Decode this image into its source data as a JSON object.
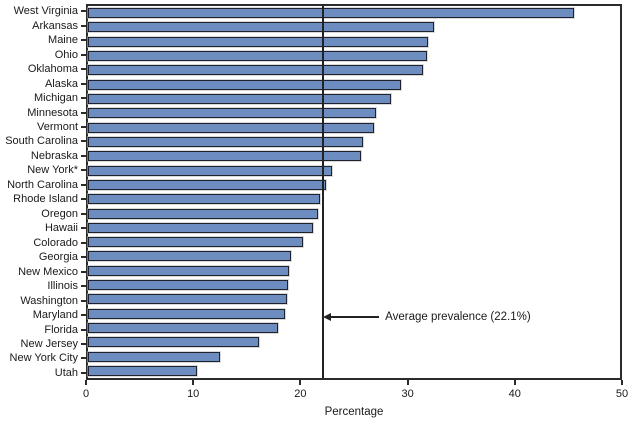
{
  "chart_data": {
    "type": "bar",
    "orientation": "horizontal",
    "title": "",
    "xlabel": "Percentage",
    "xlim": [
      0,
      50
    ],
    "xticks": [
      0,
      10,
      20,
      30,
      40,
      50
    ],
    "grid": false,
    "bar_color": "#6d8cc0",
    "bar_border_color": "#1e222c",
    "categories": [
      "West Virginia",
      "Arkansas",
      "Maine",
      "Ohio",
      "Oklahoma",
      "Alaska",
      "Michigan",
      "Minnesota",
      "Vermont",
      "South Carolina",
      "Nebraska",
      "New York*",
      "North Carolina",
      "Rhode Island",
      "Oregon",
      "Hawaii",
      "Colorado",
      "Georgia",
      "New Mexico",
      "Illinois",
      "Washington",
      "Maryland",
      "Florida",
      "New Jersey",
      "New York City",
      "Utah"
    ],
    "values": [
      45.7,
      32.5,
      32.0,
      31.9,
      31.5,
      29.4,
      28.5,
      27.1,
      26.9,
      25.8,
      25.7,
      22.9,
      22.4,
      21.8,
      21.6,
      21.1,
      20.2,
      19.1,
      18.9,
      18.8,
      18.7,
      18.5,
      17.9,
      16.1,
      12.4,
      10.2
    ],
    "average_line": {
      "value": 22.1,
      "label": "Average prevalence (22.1%)"
    }
  }
}
